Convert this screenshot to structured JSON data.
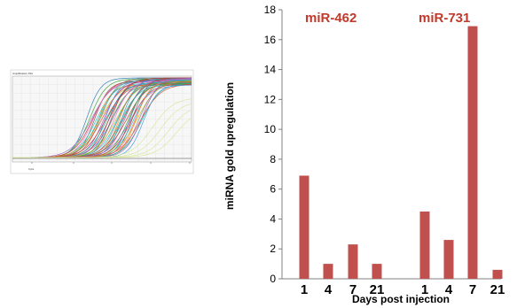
{
  "thumbnail": {
    "title": "Amplification Plot",
    "xlabel": "Cycle",
    "colors": [
      "#1f77b4",
      "#2ca02c",
      "#d62728",
      "#9467bd",
      "#8c564b",
      "#e377c2",
      "#17becf",
      "#bcbd22",
      "#ff7f0e",
      "#7f7f7f",
      "#1abc9c",
      "#e74c3c",
      "#3498db",
      "#9b59b6",
      "#16a085",
      "#c0392b"
    ],
    "faint_color": "#d9e8a0"
  },
  "chart_data": {
    "type": "bar",
    "groups": [
      "miR-462",
      "miR-731"
    ],
    "categories": [
      "1",
      "4",
      "7",
      "21",
      "1",
      "4",
      "7",
      "21"
    ],
    "values": [
      6.9,
      1.0,
      2.3,
      1.0,
      4.5,
      2.6,
      16.9,
      0.6
    ],
    "xlabel": "Days post injection",
    "ylabel": "miRNA gold upregulation",
    "ylim": [
      0,
      18
    ],
    "yticks": [
      "0",
      "2",
      "4",
      "6",
      "8",
      "10",
      "12",
      "14",
      "16",
      "18"
    ],
    "bar_color": "#c0504d",
    "grid": false
  }
}
